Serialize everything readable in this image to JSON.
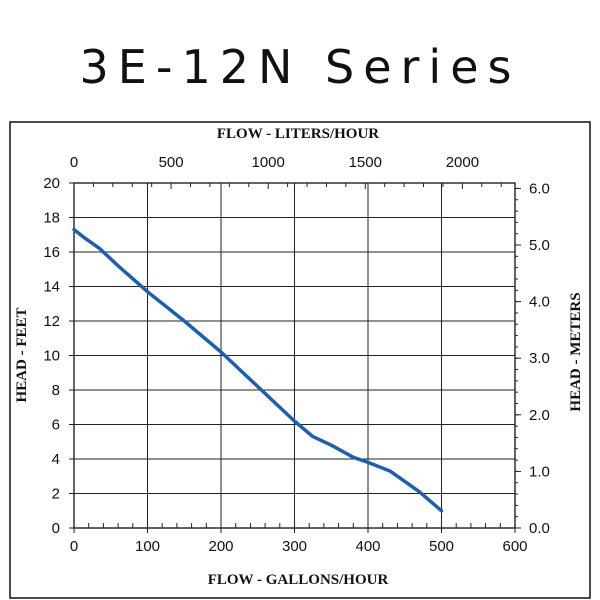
{
  "chart_data": {
    "type": "line",
    "title": "3E-12N Series",
    "xlabel": "FLOW - GALLONS/HOUR",
    "x2label": "FLOW - LITERS/HOUR",
    "ylabel": "HEAD - FEET",
    "y2label": "HEAD - METERS",
    "xlim": [
      0,
      600
    ],
    "ylim": [
      0,
      20
    ],
    "x2lim": [
      0,
      2271
    ],
    "y2lim": [
      0,
      6.096
    ],
    "xticks": [
      "0",
      "100",
      "200",
      "300",
      "400",
      "500",
      "600"
    ],
    "yticks": [
      "0",
      "2",
      "4",
      "6",
      "8",
      "10",
      "12",
      "14",
      "16",
      "18",
      "20"
    ],
    "x2ticks": [
      {
        "value": 0,
        "label": "0"
      },
      {
        "value": 500,
        "label": "500"
      },
      {
        "value": 1000,
        "label": "1000"
      },
      {
        "value": 1500,
        "label": "1500"
      },
      {
        "value": 2000,
        "label": "2000"
      }
    ],
    "y2ticks": [
      {
        "value": 0,
        "label": "0.0"
      },
      {
        "value": 1,
        "label": "1.0"
      },
      {
        "value": 2,
        "label": "2.0"
      },
      {
        "value": 3,
        "label": "3.0"
      },
      {
        "value": 4,
        "label": "4.0"
      },
      {
        "value": 5,
        "label": "5.0"
      },
      {
        "value": 6,
        "label": "6.0"
      }
    ],
    "grid": true,
    "line_color": "#1a5fb4",
    "series": [
      {
        "x": [
          0,
          15,
          35,
          60,
          100,
          150,
          175,
          200,
          250,
          300,
          325,
          350,
          380,
          400,
          430,
          450,
          470,
          500
        ],
        "y": [
          17.3,
          16.8,
          16.2,
          15.2,
          13.7,
          12.0,
          11.1,
          10.2,
          8.2,
          6.2,
          5.3,
          4.8,
          4.1,
          3.8,
          3.3,
          2.7,
          2.1,
          1.0
        ]
      }
    ]
  }
}
